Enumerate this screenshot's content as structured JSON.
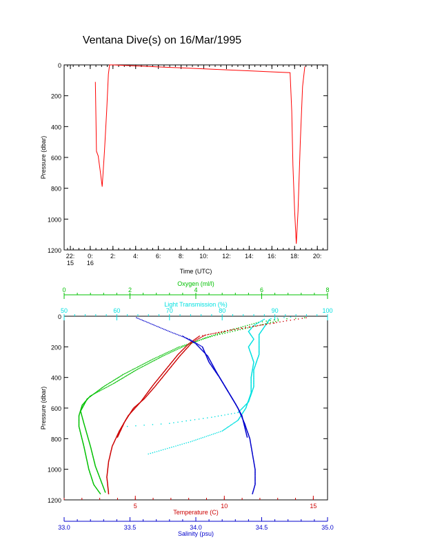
{
  "title": "Ventana Dive(s) on 16/Mar/1995",
  "chart_data": [
    {
      "type": "line",
      "xlabel": "Time (UTC)",
      "ylabel": "Pressure (dbar)",
      "x_tick_labels": [
        {
          "t": -1.75,
          "line1": "22:",
          "line2": "15"
        },
        {
          "t": 0,
          "line1": "0:",
          "line2": "16"
        },
        {
          "t": 2,
          "line1": "2:",
          "line2": ""
        },
        {
          "t": 4,
          "line1": "4:",
          "line2": ""
        },
        {
          "t": 6,
          "line1": "6:",
          "line2": ""
        },
        {
          "t": 8,
          "line1": "8:",
          "line2": ""
        },
        {
          "t": 10,
          "line1": "10:",
          "line2": ""
        },
        {
          "t": 12,
          "line1": "12:",
          "line2": ""
        },
        {
          "t": 14,
          "line1": "14:",
          "line2": ""
        },
        {
          "t": 16,
          "line1": "16:",
          "line2": ""
        },
        {
          "t": 18,
          "line1": "18:",
          "line2": ""
        },
        {
          "t": 20,
          "line1": "20:",
          "line2": ""
        }
      ],
      "xlim": [
        -2.3,
        20.9
      ],
      "ylim": [
        1200,
        0
      ],
      "yticks": [
        0,
        200,
        400,
        600,
        800,
        1000,
        1200
      ],
      "series": [
        {
          "color": "#ff0000",
          "points": [
            [
              0.45,
              110
            ],
            [
              0.5,
              330
            ],
            [
              0.55,
              560
            ],
            [
              0.7,
              590
            ],
            [
              0.9,
              700
            ],
            [
              1.05,
              790
            ],
            [
              1.25,
              560
            ],
            [
              1.45,
              300
            ],
            [
              1.6,
              60
            ],
            [
              1.7,
              0
            ],
            [
              2.0,
              0
            ],
            [
              17.6,
              50
            ],
            [
              17.75,
              300
            ],
            [
              17.85,
              650
            ],
            [
              18.0,
              950
            ],
            [
              18.15,
              1160
            ],
            [
              18.3,
              950
            ],
            [
              18.5,
              500
            ],
            [
              18.7,
              140
            ],
            [
              18.9,
              10
            ]
          ]
        }
      ]
    },
    {
      "type": "scatter",
      "ylabel": "Pressure (dbar)",
      "ylim": [
        1200,
        0
      ],
      "yticks": [
        0,
        200,
        400,
        600,
        800,
        1000,
        1200
      ],
      "axes": [
        {
          "name": "oxygen",
          "label": "Oxygen (ml/l)",
          "color": "#00c000",
          "position": "top",
          "range": [
            0,
            8
          ],
          "ticks": [
            0,
            2,
            4,
            6,
            8
          ]
        },
        {
          "name": "transmission",
          "label": "Light Transmission (%)",
          "color": "#00e0e0",
          "position": "top",
          "range": [
            50,
            100
          ],
          "ticks": [
            50,
            60,
            70,
            80,
            90,
            100
          ]
        },
        {
          "name": "temperature",
          "label": "Temperature (C)",
          "color": "#cc0000",
          "position": "bottom",
          "range": [
            1,
            15.8
          ],
          "ticks": [
            5,
            10,
            15
          ]
        },
        {
          "name": "salinity",
          "label": "Salinity (psu)",
          "color": "#0000cc",
          "position": "bottom",
          "range": [
            33.0,
            35.0
          ],
          "ticks": [
            33.0,
            33.5,
            34.0,
            34.5,
            35.0
          ]
        }
      ],
      "profiles": [
        {
          "axis": "oxygen",
          "color": "#00c000",
          "points": [
            [
              7.3,
              10
            ],
            [
              6.5,
              20
            ],
            [
              5.9,
              40
            ],
            [
              4.9,
              100
            ],
            [
              4.3,
              140
            ],
            [
              3.6,
              200
            ],
            [
              3.0,
              260
            ],
            [
              2.2,
              350
            ],
            [
              1.5,
              440
            ],
            [
              0.8,
              520
            ],
            [
              0.55,
              580
            ],
            [
              0.45,
              650
            ],
            [
              0.45,
              720
            ],
            [
              0.6,
              850
            ],
            [
              0.75,
              1000
            ],
            [
              0.9,
              1100
            ],
            [
              1.1,
              1160
            ]
          ]
        },
        {
          "axis": "oxygen",
          "color": "#00c000",
          "points": [
            [
              6.5,
              30
            ],
            [
              5.5,
              80
            ],
            [
              4.5,
              130
            ],
            [
              3.5,
              200
            ],
            [
              2.7,
              280
            ],
            [
              1.8,
              380
            ],
            [
              1.2,
              460
            ],
            [
              0.7,
              540
            ],
            [
              0.5,
              620
            ],
            [
              0.6,
              700
            ],
            [
              0.8,
              850
            ],
            [
              0.95,
              980
            ],
            [
              1.25,
              1150
            ]
          ]
        },
        {
          "axis": "transmission",
          "color": "#00e0e0",
          "points": [
            [
              93,
              5
            ],
            [
              88,
              20
            ],
            [
              86,
              60
            ],
            [
              85,
              100
            ],
            [
              86,
              150
            ],
            [
              85,
              200
            ],
            [
              86,
              300
            ],
            [
              85.5,
              400
            ],
            [
              85.5,
              500
            ],
            [
              84.5,
              600
            ],
            [
              83,
              680
            ],
            [
              80,
              750
            ],
            [
              74,
              820
            ],
            [
              66,
              900
            ]
          ]
        },
        {
          "axis": "transmission",
          "color": "#00e0e0",
          "points": [
            [
              89,
              20
            ],
            [
              87,
              120
            ],
            [
              87,
              250
            ],
            [
              86,
              350
            ],
            [
              86,
              460
            ],
            [
              85,
              560
            ],
            [
              83,
              630
            ],
            [
              78,
              660
            ],
            [
              70,
              700
            ],
            [
              62,
              720
            ]
          ]
        },
        {
          "axis": "temperature",
          "color": "#cc0000",
          "points": [
            [
              14.6,
              10
            ],
            [
              13.5,
              30
            ],
            [
              12.0,
              60
            ],
            [
              10.0,
              100
            ],
            [
              8.6,
              130
            ],
            [
              8.0,
              180
            ],
            [
              7.4,
              250
            ],
            [
              6.7,
              350
            ],
            [
              6.0,
              450
            ],
            [
              5.3,
              560
            ],
            [
              4.6,
              650
            ],
            [
              4.1,
              750
            ],
            [
              3.7,
              850
            ],
            [
              3.5,
              950
            ],
            [
              3.4,
              1050
            ],
            [
              3.5,
              1160
            ]
          ]
        },
        {
          "axis": "temperature",
          "color": "#cc0000",
          "points": [
            [
              12.8,
              45
            ],
            [
              10.5,
              85
            ],
            [
              8.9,
              125
            ],
            [
              8.2,
              170
            ],
            [
              7.5,
              260
            ],
            [
              6.8,
              360
            ],
            [
              6.1,
              460
            ],
            [
              5.5,
              540
            ],
            [
              4.9,
              600
            ],
            [
              4.4,
              690
            ],
            [
              4.0,
              790
            ]
          ]
        },
        {
          "axis": "salinity",
          "color": "#0000cc",
          "points": [
            [
              33.55,
              10
            ],
            [
              33.8,
              100
            ],
            [
              33.95,
              150
            ],
            [
              34.05,
              200
            ],
            [
              34.1,
              300
            ],
            [
              34.18,
              400
            ],
            [
              34.25,
              500
            ],
            [
              34.32,
              600
            ],
            [
              34.37,
              700
            ],
            [
              34.41,
              800
            ],
            [
              34.43,
              900
            ],
            [
              34.45,
              1000
            ],
            [
              34.45,
              1100
            ],
            [
              34.43,
              1160
            ]
          ]
        },
        {
          "axis": "salinity",
          "color": "#0000cc",
          "points": [
            [
              33.9,
              130
            ],
            [
              34.0,
              180
            ],
            [
              34.09,
              260
            ],
            [
              34.16,
              370
            ],
            [
              34.23,
              470
            ],
            [
              34.3,
              570
            ],
            [
              34.35,
              650
            ],
            [
              34.39,
              790
            ]
          ]
        }
      ]
    }
  ]
}
